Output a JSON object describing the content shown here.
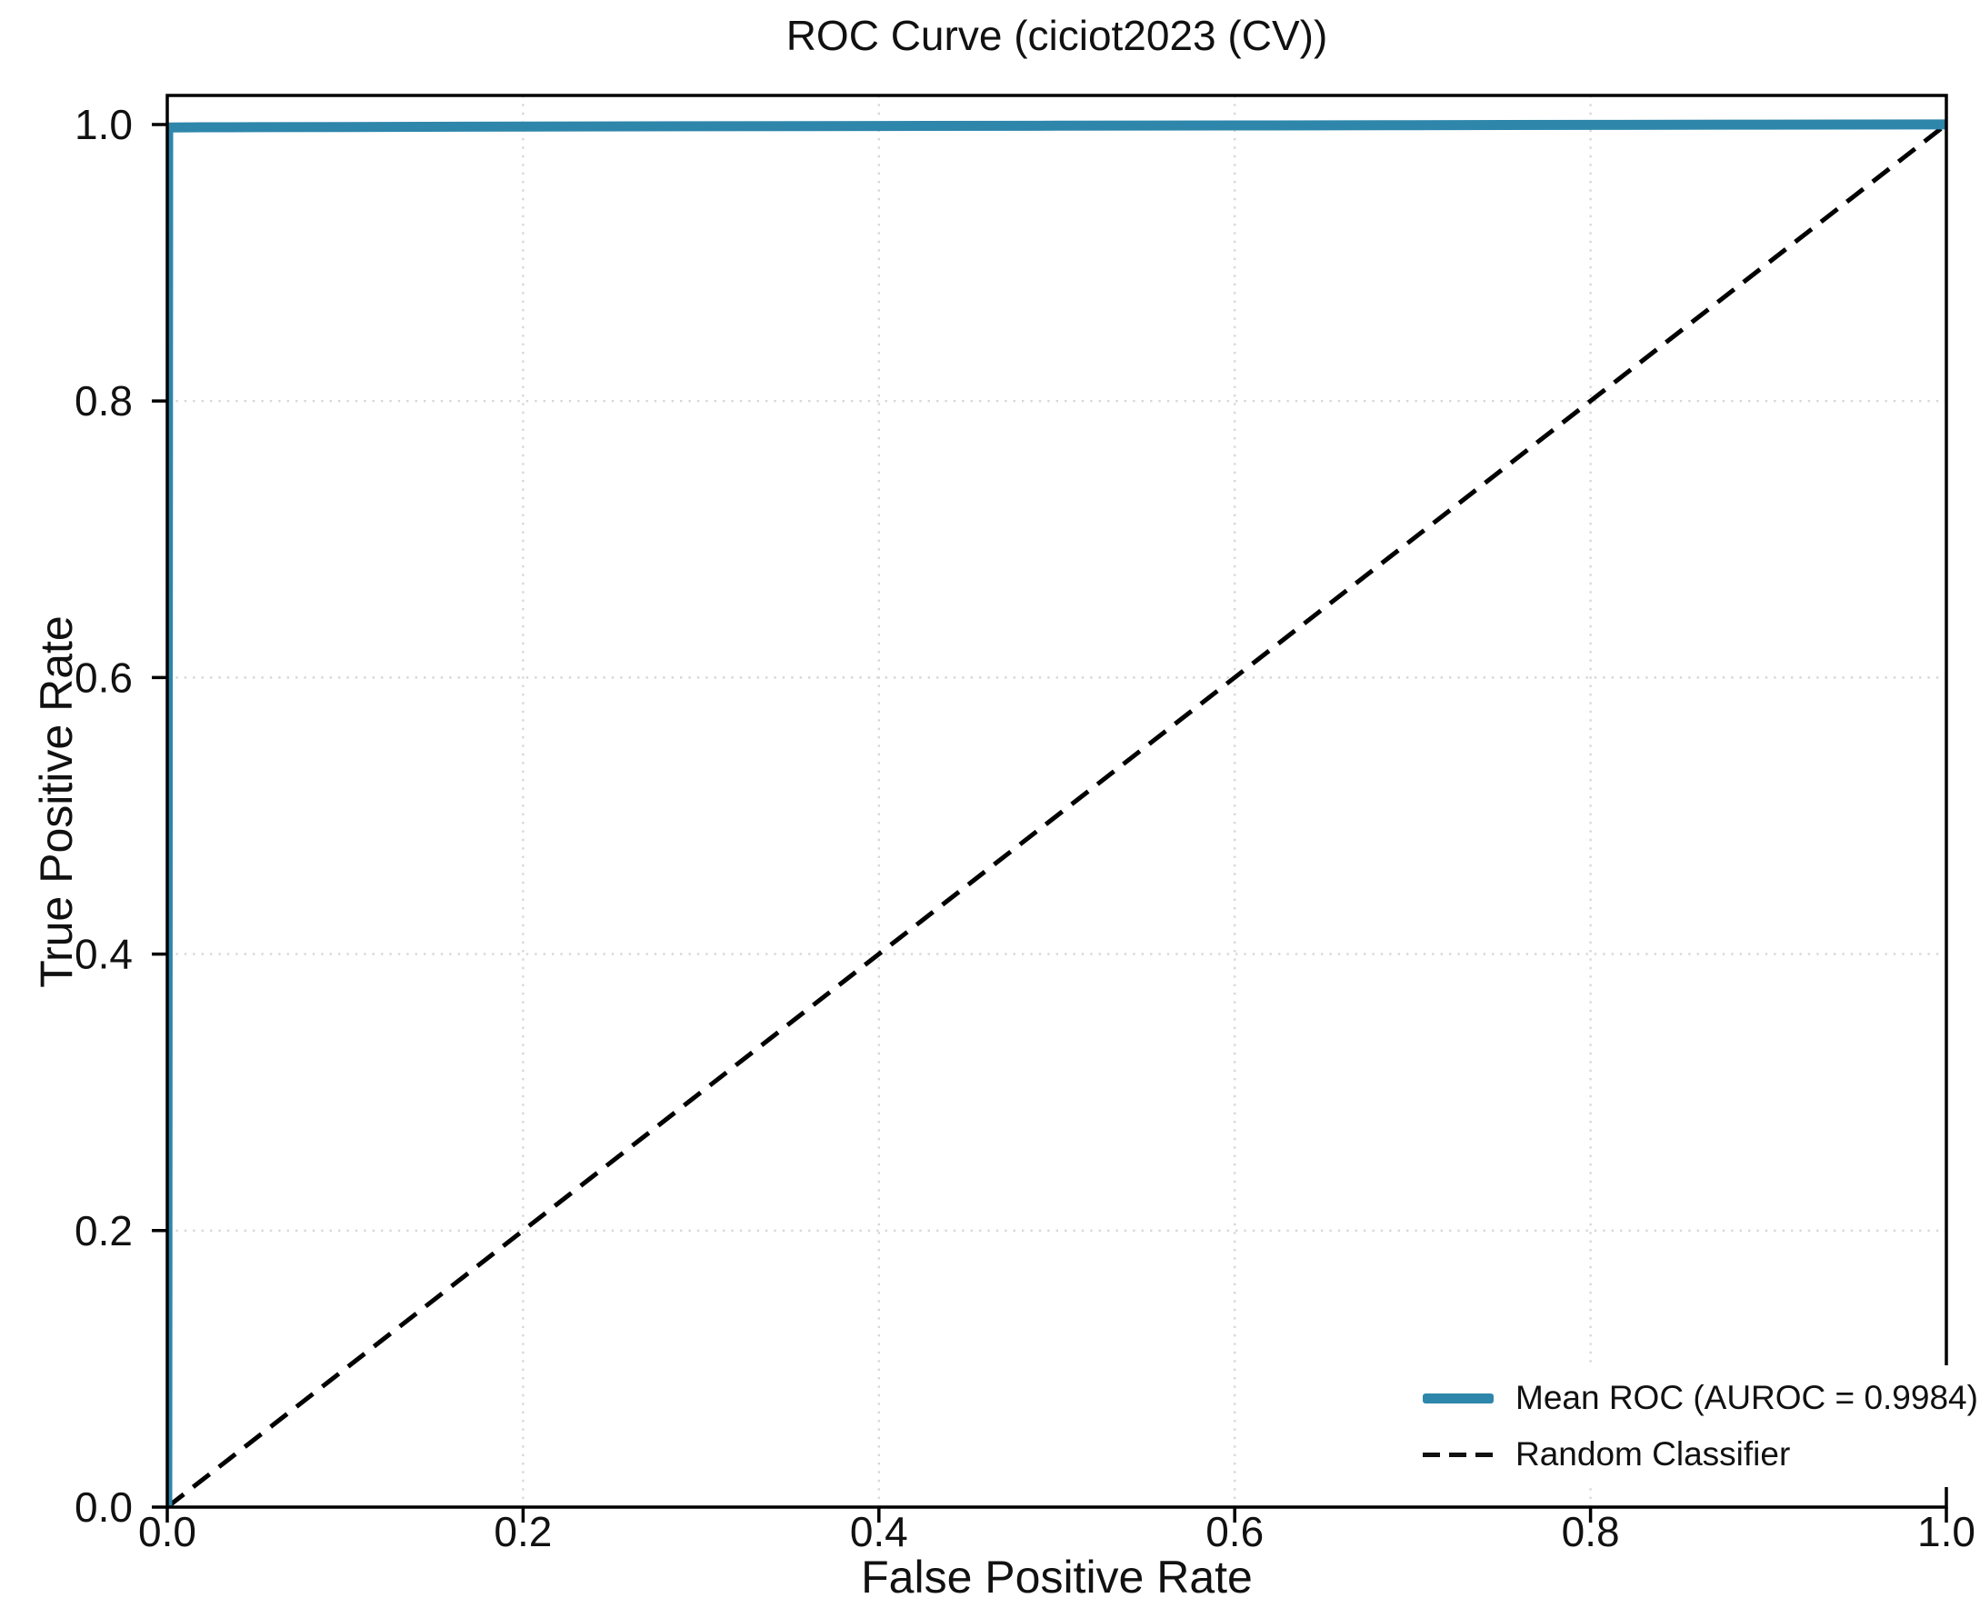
{
  "chart": {
    "title": "ROC Curve (ciciot2023 (CV))",
    "xlabel": "False Positive Rate",
    "ylabel": "True Positive Rate"
  },
  "chart_data": {
    "type": "line",
    "title": "ROC Curve (ciciot2023 (CV))",
    "xlabel": "False Positive Rate",
    "ylabel": "True Positive Rate",
    "xlim": [
      0.0,
      1.0
    ],
    "ylim": [
      0.0,
      1.021
    ],
    "xticks": [
      0.0,
      0.2,
      0.4,
      0.6,
      0.8,
      1.0
    ],
    "yticks": [
      0.0,
      0.2,
      0.4,
      0.6,
      0.8,
      1.0
    ],
    "grid": true,
    "grid_style": "dotted",
    "grid_color": "#d8d8d8",
    "spine_color": "#000000",
    "legend_position": "lower right",
    "auroc": 0.9984,
    "series": [
      {
        "name": "Mean ROC (AUROC = 0.9984)",
        "color": "#2e86ab",
        "style": "solid",
        "width": 11,
        "points": [
          [
            0.0,
            0.0
          ],
          [
            0.0005,
            0.995
          ],
          [
            0.001,
            0.9978
          ],
          [
            0.02,
            0.998
          ],
          [
            0.05,
            0.99805
          ],
          [
            0.1,
            0.9982
          ],
          [
            0.2,
            0.9985
          ],
          [
            0.3,
            0.9987
          ],
          [
            0.4,
            0.9989
          ],
          [
            0.5,
            0.9991
          ],
          [
            0.6,
            0.9993
          ],
          [
            0.7,
            0.9995
          ],
          [
            0.8,
            0.9997
          ],
          [
            0.9,
            0.9999
          ],
          [
            1.0,
            1.0
          ]
        ]
      },
      {
        "name": "Random Classifier",
        "color": "#000000",
        "style": "dashed",
        "width": 5,
        "points": [
          [
            0.0,
            0.0
          ],
          [
            1.0,
            1.0
          ]
        ]
      }
    ]
  }
}
